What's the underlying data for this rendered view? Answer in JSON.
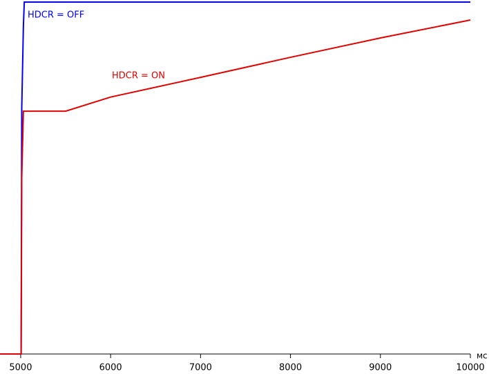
{
  "chart_data": {
    "type": "line",
    "x_unit": "мс",
    "xlim": [
      4770,
      10000
    ],
    "xticks": [
      5000,
      6000,
      7000,
      8000,
      9000,
      10000
    ],
    "ylim": [
      0,
      100
    ],
    "series": [
      {
        "name": "HDCR = OFF",
        "color": "#0000ff",
        "x": [
          4770,
          5005,
          5012,
          5030,
          5040,
          10000
        ],
        "values": [
          0,
          0,
          70,
          93,
          100,
          100
        ]
      },
      {
        "name": "HDCR = ON",
        "color": "#e00000",
        "x": [
          4770,
          5005,
          5012,
          5030,
          5500,
          6000,
          7000,
          8000,
          9000,
          10000
        ],
        "values": [
          0,
          0,
          50,
          69,
          69,
          73,
          78.6,
          84.3,
          89.8,
          94.9
        ]
      }
    ]
  }
}
